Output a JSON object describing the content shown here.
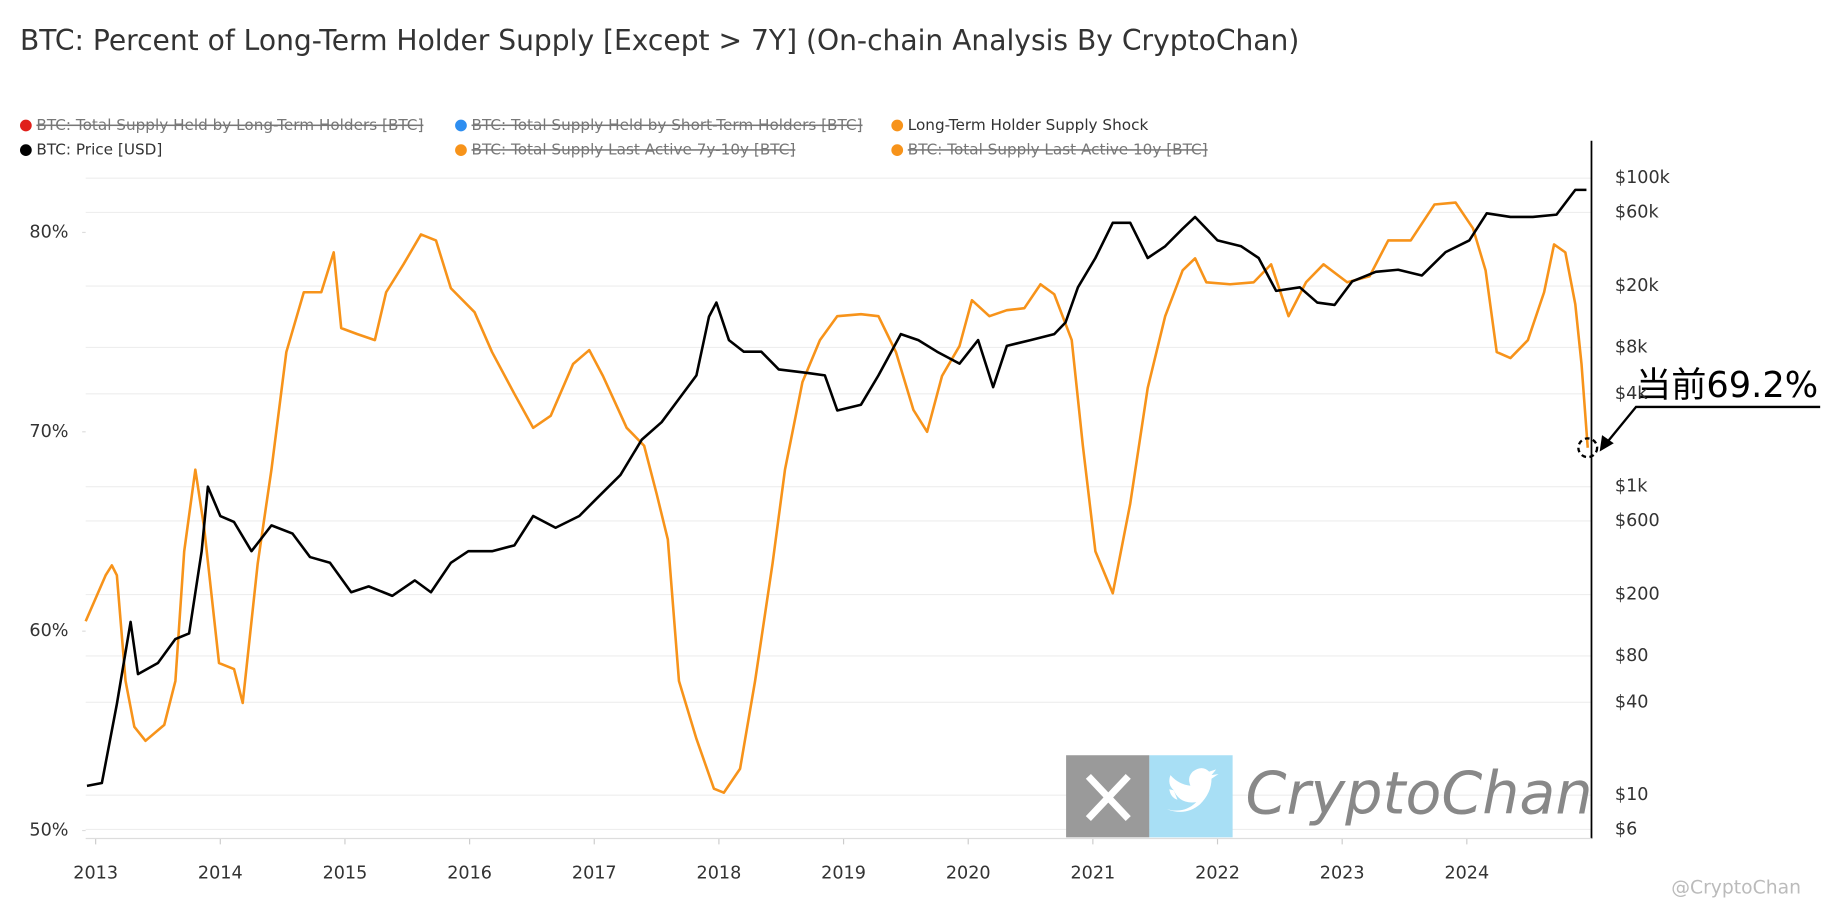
{
  "chart_data": {
    "type": "line",
    "title": "BTC: Percent of Long-Term Holder Supply [Except > 7Y] (On-chain Analysis By CryptoChan)",
    "annotation": "当前69.2%",
    "watermark": "CryptoChan",
    "credit": "@CryptoChan",
    "xlim": [
      2012.92,
      2025.0
    ],
    "xticks": [
      2013,
      2014,
      2015,
      2016,
      2017,
      2018,
      2019,
      2020,
      2021,
      2022,
      2023,
      2024
    ],
    "ylim": [
      49.6,
      84.6
    ],
    "yticks": [
      {
        "value": 50,
        "label": "50%"
      },
      {
        "value": 60,
        "label": "60%"
      },
      {
        "value": 70,
        "label": "70%"
      },
      {
        "value": 80,
        "label": "80%"
      }
    ],
    "y2lim": [
      5.24,
      175000
    ],
    "y2log": true,
    "y2ticks": [
      {
        "value": 6,
        "label": "$6"
      },
      {
        "value": 10,
        "label": "$10"
      },
      {
        "value": 40,
        "label": "$40"
      },
      {
        "value": 80,
        "label": "$80"
      },
      {
        "value": 200,
        "label": "$200"
      },
      {
        "value": 600,
        "label": "$600"
      },
      {
        "value": 1000,
        "label": "$1k"
      },
      {
        "value": 4000,
        "label": "$4k"
      },
      {
        "value": 8000,
        "label": "$8k"
      },
      {
        "value": 20000,
        "label": "$20k"
      },
      {
        "value": 60000,
        "label": "$60k"
      },
      {
        "value": 100000,
        "label": "$100k"
      }
    ],
    "grid": true,
    "series": [
      {
        "name": "Long-Term Holder Supply Shock",
        "color": "#f7931a",
        "x": [
          2012.92,
          2013.08,
          2013.13,
          2013.17,
          2013.24,
          2013.31,
          2013.4,
          2013.55,
          2013.64,
          2013.71,
          2013.8,
          2013.87,
          2013.99,
          2014.11,
          2014.18,
          2014.3,
          2014.41,
          2014.53,
          2014.67,
          2014.81,
          2014.91,
          2014.97,
          2015.1,
          2015.24,
          2015.33,
          2015.47,
          2015.61,
          2015.73,
          2015.85,
          2016.04,
          2016.18,
          2016.36,
          2016.51,
          2016.65,
          2016.83,
          2016.96,
          2017.07,
          2017.26,
          2017.4,
          2017.5,
          2017.59,
          2017.68,
          2017.82,
          2017.96,
          2018.04,
          2018.17,
          2018.29,
          2018.43,
          2018.53,
          2018.67,
          2018.81,
          2018.95,
          2019.14,
          2019.28,
          2019.42,
          2019.56,
          2019.67,
          2019.79,
          2019.93,
          2020.03,
          2020.17,
          2020.31,
          2020.45,
          2020.58,
          2020.69,
          2020.83,
          2020.92,
          2021.02,
          2021.16,
          2021.3,
          2021.44,
          2021.58,
          2021.72,
          2021.82,
          2021.91,
          2022.1,
          2022.29,
          2022.43,
          2022.57,
          2022.71,
          2022.85,
          2023.04,
          2023.22,
          2023.37,
          2023.55,
          2023.74,
          2023.91,
          2024.05,
          2024.15,
          2024.24,
          2024.35,
          2024.49,
          2024.62,
          2024.7,
          2024.79,
          2024.87,
          2024.92,
          2024.97
        ],
        "values": [
          60.5,
          62.8,
          63.3,
          62.8,
          57.5,
          55.2,
          54.5,
          55.3,
          57.5,
          64,
          68.1,
          65.2,
          58.4,
          58.1,
          56.4,
          63.4,
          68.1,
          74,
          77,
          77,
          79,
          75.2,
          74.9,
          74.6,
          77,
          78.4,
          79.9,
          79.6,
          77.2,
          76,
          74,
          71.9,
          70.2,
          70.8,
          73.4,
          74.1,
          72.8,
          70.2,
          69.3,
          66.9,
          64.6,
          57.5,
          54.6,
          52.1,
          51.9,
          53.1,
          57.5,
          63.4,
          68.1,
          72.5,
          74.6,
          75.8,
          75.9,
          75.8,
          74,
          71.1,
          70,
          72.8,
          74.3,
          76.6,
          75.8,
          76.1,
          76.2,
          77.4,
          76.9,
          74.6,
          69.3,
          64,
          61.9,
          66.4,
          72.2,
          75.8,
          78.1,
          78.7,
          77.5,
          77.4,
          77.5,
          78.4,
          75.8,
          77.5,
          78.4,
          77.5,
          77.8,
          79.6,
          79.6,
          81.4,
          81.5,
          80.2,
          78.1,
          74,
          73.7,
          74.6,
          77,
          79.4,
          79,
          76.4,
          73.4,
          69.2
        ]
      },
      {
        "name": "BTC: Price [USD]",
        "color": "#000000",
        "axis": "y2",
        "x": [
          2012.93,
          2013.05,
          2013.17,
          2013.28,
          2013.34,
          2013.5,
          2013.64,
          2013.75,
          2013.85,
          2013.9,
          2014.0,
          2014.11,
          2014.25,
          2014.41,
          2014.58,
          2014.72,
          2014.88,
          2015.05,
          2015.19,
          2015.38,
          2015.56,
          2015.69,
          2015.85,
          2015.99,
          2016.18,
          2016.36,
          2016.51,
          2016.69,
          2016.88,
          2017.02,
          2017.21,
          2017.38,
          2017.54,
          2017.68,
          2017.82,
          2017.92,
          2017.98,
          2018.08,
          2018.2,
          2018.34,
          2018.48,
          2018.71,
          2018.85,
          2018.95,
          2019.14,
          2019.28,
          2019.46,
          2019.6,
          2019.75,
          2019.93,
          2020.08,
          2020.2,
          2020.31,
          2020.5,
          2020.69,
          2020.78,
          2020.88,
          2021.02,
          2021.16,
          2021.3,
          2021.44,
          2021.58,
          2021.72,
          2021.82,
          2022.0,
          2022.19,
          2022.33,
          2022.47,
          2022.66,
          2022.8,
          2022.94,
          2023.08,
          2023.27,
          2023.45,
          2023.64,
          2023.83,
          2024.02,
          2024.16,
          2024.35,
          2024.53,
          2024.72,
          2024.87,
          2024.96
        ],
        "values": [
          11.5,
          12,
          39,
          133,
          61,
          72,
          103,
          112,
          382,
          1000,
          646,
          591,
          382,
          561,
          497,
          350,
          321,
          207,
          226,
          196,
          247,
          207,
          321,
          382,
          382,
          417,
          646,
          542,
          646,
          840,
          1191,
          2014,
          2618,
          3715,
          5270,
          12670,
          15630,
          8930,
          7500,
          7500,
          5760,
          5470,
          5270,
          3120,
          3400,
          5270,
          9750,
          8930,
          7500,
          6280,
          8930,
          4420,
          8190,
          8930,
          9750,
          11600,
          19630,
          30400,
          51400,
          51400,
          30400,
          36200,
          47100,
          56100,
          39500,
          36200,
          30400,
          18600,
          19630,
          15630,
          15100,
          21400,
          24700,
          25500,
          23400,
          33200,
          39500,
          59200,
          56100,
          56100,
          58100,
          84000,
          84000
        ]
      }
    ],
    "hidden_series": [
      {
        "name": "BTC: Total Supply Held by Long-Term Holders [BTC]",
        "color": "#e0201b"
      },
      {
        "name": "BTC: Total Supply Held by Short-Term Holders [BTC]",
        "color": "#2e8ef0"
      },
      {
        "name": "BTC: Total Supply Last Active 7y-10y [BTC]",
        "color": "#f7931a"
      },
      {
        "name": "BTC: Total Supply Last Active 10y [BTC]",
        "color": "#f7931a"
      }
    ]
  }
}
